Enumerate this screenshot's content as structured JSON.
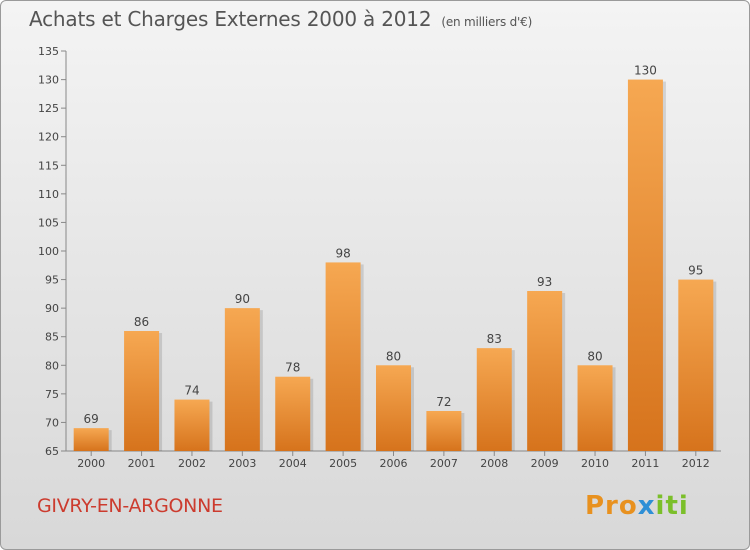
{
  "title": "Achats et Charges Externes 2000 à 2012",
  "subtitle": "(en milliers d'€)",
  "commune": "GIVRY-EN-ARGONNE",
  "logo": {
    "text": "Proxiti"
  },
  "colors": {
    "bar_light": "#f5a652",
    "bar_dark": "#d9761e",
    "commune": "#cc3b2e"
  },
  "chart_data": {
    "type": "bar",
    "categories": [
      "2000",
      "2001",
      "2002",
      "2003",
      "2004",
      "2005",
      "2006",
      "2007",
      "2008",
      "2009",
      "2010",
      "2011",
      "2012"
    ],
    "values": [
      69,
      86,
      74,
      90,
      78,
      98,
      80,
      72,
      83,
      93,
      80,
      130,
      95
    ],
    "ylim": [
      65,
      135
    ],
    "yticks": [
      65,
      70,
      75,
      80,
      85,
      90,
      95,
      100,
      105,
      110,
      115,
      120,
      125,
      130,
      135
    ],
    "grid": false,
    "data_labels": true
  }
}
